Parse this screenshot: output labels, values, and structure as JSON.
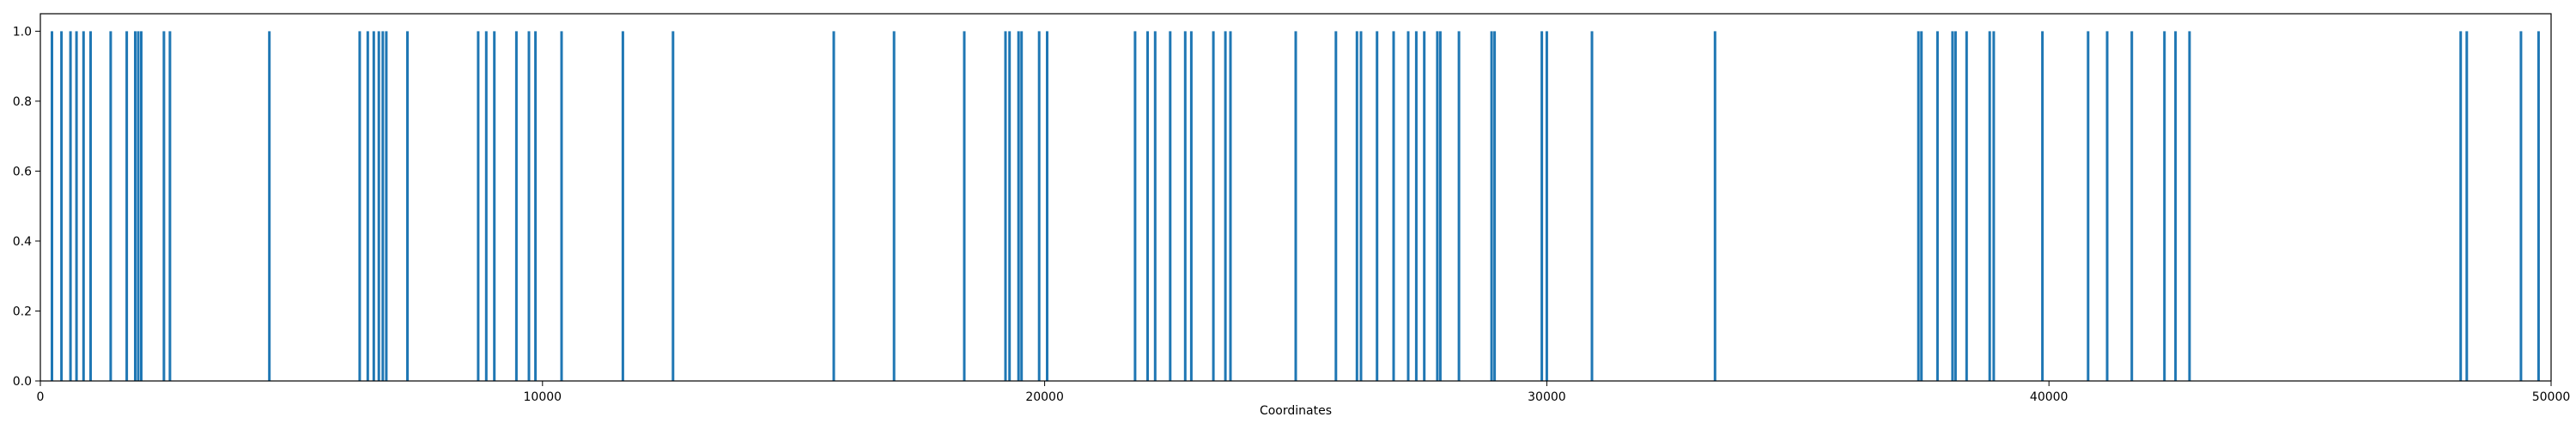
{
  "chart_data": {
    "type": "bar",
    "title": "",
    "xlabel": "Coordinates",
    "ylabel": "",
    "xlim": [
      0,
      50000
    ],
    "ylim": [
      0.0,
      1.05
    ],
    "grid": false,
    "legend": "none",
    "bar_color": "#1f77b4",
    "x_ticks": [
      0,
      10000,
      20000,
      30000,
      40000,
      50000
    ],
    "x_tick_labels": [
      "0",
      "10000",
      "20000",
      "30000",
      "40000",
      "50000"
    ],
    "y_ticks": [
      0.0,
      0.2,
      0.4,
      0.6,
      0.8,
      1.0
    ],
    "y_tick_labels": [
      "0.0",
      "0.2",
      "0.4",
      "0.6",
      "0.8",
      "1.0"
    ],
    "x": [
      230,
      420,
      600,
      720,
      860,
      1000,
      1400,
      1720,
      1890,
      1950,
      2010,
      2460,
      2580,
      4560,
      6360,
      6520,
      6640,
      6740,
      6820,
      6890,
      7310,
      8720,
      8880,
      9040,
      9480,
      9730,
      9860,
      10380,
      11600,
      12600,
      15800,
      17000,
      18400,
      19220,
      19300,
      19480,
      19540,
      19890,
      20050,
      21800,
      22050,
      22200,
      22500,
      22800,
      22920,
      23360,
      23600,
      23700,
      25000,
      25800,
      26220,
      26300,
      26620,
      26950,
      27240,
      27400,
      27560,
      27820,
      27880,
      28250,
      28900,
      28960,
      29900,
      30000,
      30900,
      33350,
      37400,
      37460,
      37780,
      38080,
      38140,
      38360,
      38820,
      38900,
      39870,
      40780,
      41160,
      41650,
      42300,
      42520,
      42800,
      48200,
      48320,
      49400,
      49750
    ],
    "y": [
      1,
      1,
      1,
      1,
      1,
      1,
      1,
      1,
      1,
      1,
      1,
      1,
      1,
      1,
      1,
      1,
      1,
      1,
      1,
      1,
      1,
      1,
      1,
      1,
      1,
      1,
      1,
      1,
      1,
      1,
      1,
      1,
      1,
      1,
      1,
      1,
      1,
      1,
      1,
      1,
      1,
      1,
      1,
      1,
      1,
      1,
      1,
      1,
      1,
      1,
      1,
      1,
      1,
      1,
      1,
      1,
      1,
      1,
      1,
      1,
      1,
      1,
      1,
      1,
      1,
      1,
      1,
      1,
      1,
      1,
      1,
      1,
      1,
      1,
      1,
      1,
      1,
      1,
      1,
      1,
      1,
      1,
      1,
      1,
      1
    ]
  }
}
